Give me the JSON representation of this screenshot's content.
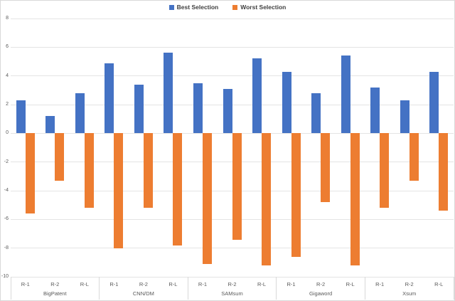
{
  "chart_data": {
    "type": "bar",
    "title": "",
    "legend_position": "top",
    "grid": true,
    "ylim": [
      -10,
      8
    ],
    "y_ticks": [
      8,
      6,
      4,
      2,
      0,
      -2,
      -4,
      -6,
      -8,
      -10
    ],
    "groups": [
      {
        "label": "BigPatent",
        "categories": [
          "R-1",
          "R-2",
          "R-L"
        ]
      },
      {
        "label": "CNN/DM",
        "categories": [
          "R-1",
          "R-2",
          "R-L"
        ]
      },
      {
        "label": "SAMsum",
        "categories": [
          "R-1",
          "R-2",
          "R-L"
        ]
      },
      {
        "label": "Gigaword",
        "categories": [
          "R-1",
          "R-2",
          "R-L"
        ]
      },
      {
        "label": "Xsum",
        "categories": [
          "R-1",
          "R-2",
          "R-L"
        ]
      }
    ],
    "series": [
      {
        "name": "Best Selection",
        "color": "#4472C4",
        "values": [
          2.3,
          1.2,
          2.8,
          4.9,
          3.4,
          5.6,
          3.5,
          3.1,
          5.2,
          4.3,
          2.8,
          5.4,
          3.2,
          2.3,
          4.3
        ]
      },
      {
        "name": "Worst Selection",
        "color": "#ED7D31",
        "values": [
          -5.6,
          -3.3,
          -5.2,
          -8.0,
          -5.2,
          -7.8,
          -9.1,
          -7.4,
          -9.2,
          -8.6,
          -4.8,
          -9.2,
          -5.2,
          -3.3,
          -5.4
        ]
      }
    ]
  }
}
